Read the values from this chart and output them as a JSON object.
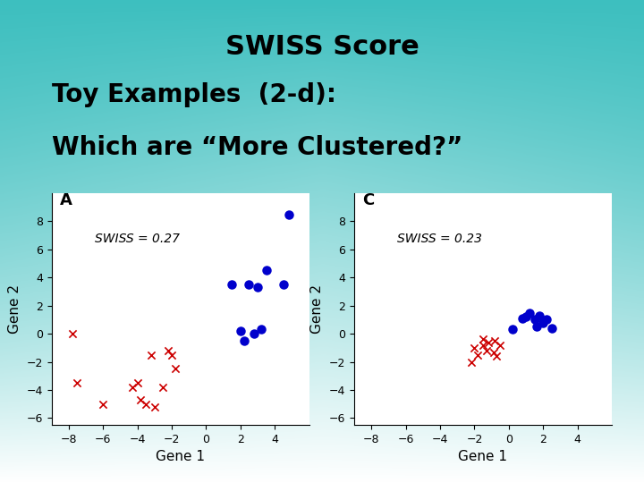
{
  "title": "SWISS Score",
  "subtitle1": "Toy Examples  (2-d):",
  "subtitle2": "Which are “More Clustered?”",
  "background_top": "#3dbfbf",
  "background_bottom": "#ffffff",
  "plot_A_label": "A",
  "plot_C_label": "C",
  "swiss_A": "SWISS = 0.27",
  "swiss_C": "SWISS = 0.23",
  "xlabel": "Gene 1",
  "ylabel": "Gene 2",
  "xlim": [
    -9,
    6
  ],
  "ylim": [
    -6.5,
    10
  ],
  "xticks": [
    -8,
    -6,
    -4,
    -2,
    0,
    2,
    4
  ],
  "yticks": [
    -6,
    -4,
    -2,
    0,
    2,
    4,
    6,
    8
  ],
  "blue_A_x": [
    4.8,
    1.5,
    2.5,
    3.5,
    4.5,
    2.0,
    2.8,
    3.2,
    2.2,
    3.0
  ],
  "blue_A_y": [
    8.5,
    3.5,
    3.5,
    4.5,
    3.5,
    0.2,
    0.0,
    0.3,
    -0.5,
    3.3
  ],
  "red_A_x": [
    -7.8,
    -7.5,
    -6.0,
    -4.0,
    -3.5,
    -3.0,
    -2.5,
    -2.0,
    -1.8,
    -2.2,
    -3.2,
    -4.3,
    -3.8
  ],
  "red_A_y": [
    0.0,
    -3.5,
    -5.0,
    -3.5,
    -5.0,
    -5.2,
    -3.8,
    -1.5,
    -2.5,
    -1.2,
    -1.5,
    -3.8,
    -4.7
  ],
  "blue_C_x": [
    0.2,
    1.0,
    1.5,
    2.0,
    1.2,
    1.8,
    2.2,
    1.6,
    2.5,
    0.8
  ],
  "blue_C_y": [
    0.3,
    1.2,
    1.0,
    0.8,
    1.5,
    1.3,
    1.0,
    0.5,
    0.4,
    1.1
  ],
  "red_C_x": [
    -2.0,
    -1.5,
    -1.2,
    -0.8,
    -0.5,
    -1.8,
    -1.3,
    -0.9,
    -1.5,
    -0.7,
    -2.2
  ],
  "red_C_y": [
    -1.0,
    -0.8,
    -0.6,
    -0.5,
    -0.8,
    -1.5,
    -1.2,
    -1.3,
    -0.4,
    -1.6,
    -2.0
  ],
  "blue_color": "#0000cc",
  "red_color": "#cc0000",
  "title_fontsize": 22,
  "subtitle_fontsize": 20,
  "label_fontsize": 11,
  "tick_fontsize": 9,
  "swiss_fontsize": 10
}
